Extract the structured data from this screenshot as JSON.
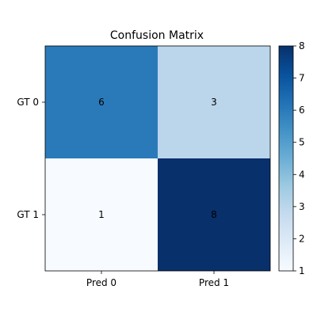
{
  "chart_data": {
    "type": "heatmap",
    "title": "Confusion Matrix",
    "x_categories": [
      "Pred 0",
      "Pred 1"
    ],
    "y_categories": [
      "GT 0",
      "GT 1"
    ],
    "values": [
      [
        6,
        3
      ],
      [
        1,
        8
      ]
    ],
    "colormap": "Blues",
    "colorbar": {
      "min": 1,
      "max": 8,
      "ticks": [
        "1",
        "2",
        "3",
        "4",
        "5",
        "6",
        "7",
        "8"
      ]
    }
  }
}
